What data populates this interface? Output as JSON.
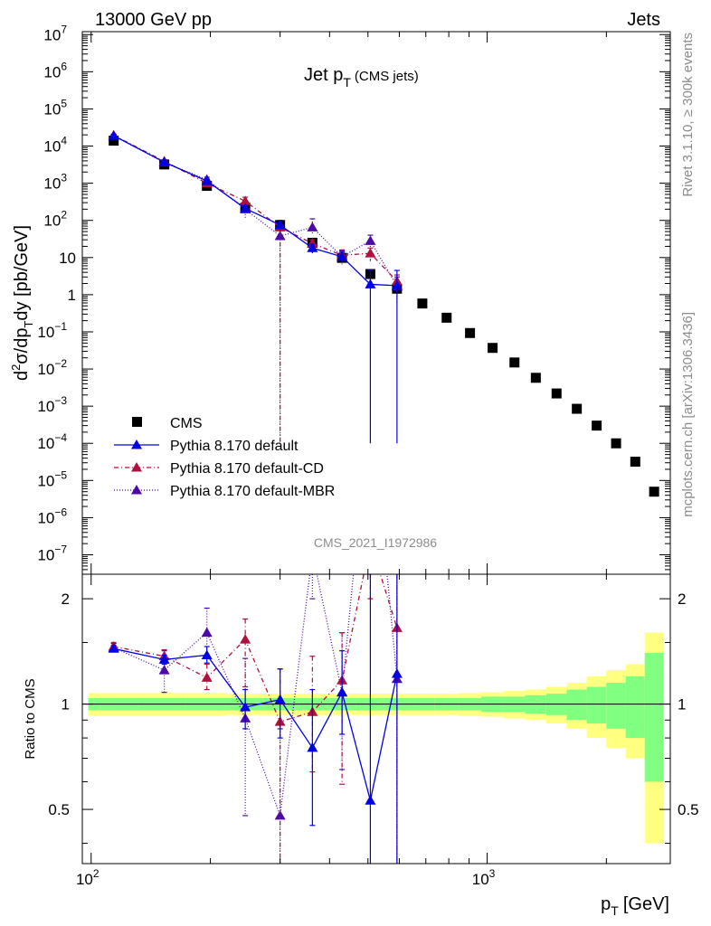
{
  "header": {
    "left": "13000 GeV pp",
    "right": "Jets"
  },
  "side": {
    "top": "Rivet 3.1.10, ≥ 300k events",
    "bottom": "mcplots.cern.ch [arXiv:1306.3436]"
  },
  "chart_data": {
    "type": "scatter",
    "title_main": "Jet p",
    "title_sub": "T",
    "title_paren": "(CMS jets)",
    "watermark": "CMS_2021_I1972986",
    "xlabel_main": "p",
    "xlabel_sub": "T",
    "xlabel_unit": "[GeV]",
    "ylabel": "d²σ/dp_T dy [pb/GeV]",
    "ratio_ylabel": "Ratio to CMS",
    "xlog": true,
    "ylog": true,
    "xlim": [
      95,
      2900
    ],
    "ylim": [
      3e-08,
      12000000.0
    ],
    "ratio_ylim": [
      0.35,
      2.35
    ],
    "x_ticks": [
      {
        "v": 100,
        "base": "10",
        "exp": "2"
      },
      {
        "v": 1000,
        "base": "10",
        "exp": "3"
      }
    ],
    "y_ticks": [
      {
        "v": 10000000.0,
        "base": "10",
        "exp": "7"
      },
      {
        "v": 1000000.0,
        "base": "10",
        "exp": "6"
      },
      {
        "v": 100000.0,
        "base": "10",
        "exp": "5"
      },
      {
        "v": 10000.0,
        "base": "10",
        "exp": "4"
      },
      {
        "v": 1000.0,
        "base": "10",
        "exp": "3"
      },
      {
        "v": 100.0,
        "base": "10",
        "exp": "2"
      },
      {
        "v": 10,
        "base": "10",
        "exp": ""
      },
      {
        "v": 1,
        "base": "1",
        "exp": ""
      },
      {
        "v": 0.1,
        "base": "10",
        "exp": "−1"
      },
      {
        "v": 0.01,
        "base": "10",
        "exp": "−2"
      },
      {
        "v": 0.001,
        "base": "10",
        "exp": "−3"
      },
      {
        "v": 0.0001,
        "base": "10",
        "exp": "−4"
      },
      {
        "v": 1e-05,
        "base": "10",
        "exp": "−5"
      },
      {
        "v": 1e-06,
        "base": "10",
        "exp": "−6"
      },
      {
        "v": 1e-07,
        "base": "10",
        "exp": "−7"
      }
    ],
    "ratio_ticks": [
      "0.5",
      "1",
      "2"
    ],
    "cms": {
      "name": "CMS",
      "color": "#000000",
      "x": [
        114,
        153,
        196,
        245,
        300,
        362,
        430,
        507,
        592,
        686,
        790,
        905,
        1032,
        1172,
        1327,
        1497,
        1684,
        1890,
        2116,
        2366,
        2640
      ],
      "y": [
        14000,
        3200,
        850,
        220,
        75,
        25,
        9.8,
        3.6,
        1.45,
        0.58,
        0.24,
        0.093,
        0.037,
        0.015,
        0.0058,
        0.0022,
        0.00085,
        0.0003,
        0.0001,
        3.2e-05,
        5e-06
      ],
      "band_rel_yellow": [
        0.075,
        0.075,
        0.075,
        0.07,
        0.07,
        0.07,
        0.07,
        0.07,
        0.07,
        0.07,
        0.07,
        0.075,
        0.08,
        0.09,
        0.1,
        0.12,
        0.15,
        0.2,
        0.25,
        0.3,
        0.6
      ],
      "band_rel_green": [
        0.04,
        0.04,
        0.04,
        0.04,
        0.04,
        0.04,
        0.04,
        0.04,
        0.04,
        0.04,
        0.04,
        0.04,
        0.05,
        0.05,
        0.06,
        0.07,
        0.1,
        0.12,
        0.15,
        0.2,
        0.4
      ]
    },
    "series": [
      {
        "name": "Pythia 8.170 default",
        "color": "#0000e6",
        "dash": "",
        "x": [
          114,
          153,
          196,
          245,
          300,
          362,
          430,
          507,
          592
        ],
        "y": [
          19000,
          3700,
          1150,
          210,
          75,
          18,
          10.5,
          1.9,
          1.75
        ],
        "ylo": [
          17500,
          3300,
          1000,
          170,
          50,
          13,
          8,
          0.0001,
          0.0001
        ],
        "yhi": [
          20500,
          4100,
          1300,
          250,
          100,
          23,
          14,
          4.5,
          4.5
        ],
        "ratio": [
          1.44,
          1.34,
          1.38,
          0.98,
          1.03,
          0.75,
          1.08,
          0.53,
          1.22
        ],
        "ratio_lo": [
          1.41,
          1.3,
          1.31,
          0.85,
          0.8,
          0.45,
          0.82,
          0.3,
          0.3
        ],
        "ratio_hi": [
          1.47,
          1.38,
          1.46,
          1.1,
          1.26,
          1.1,
          1.42,
          2.5,
          2.5
        ]
      },
      {
        "name": "Pythia 8.170 default-CD",
        "color": "#b0103c",
        "dash": "5,3,1,3",
        "x": [
          114,
          153,
          196,
          245,
          300,
          362,
          430,
          507,
          592
        ],
        "y": [
          19500,
          3900,
          1000,
          330,
          65,
          24,
          11.5,
          13,
          2.3
        ],
        "ylo": [
          18000,
          3500,
          850,
          240,
          0.0001,
          17,
          8,
          8,
          1.2
        ],
        "yhi": [
          21000,
          4300,
          1150,
          420,
          100,
          30,
          15,
          18,
          3.4
        ],
        "ratio": [
          1.46,
          1.37,
          1.19,
          1.53,
          0.89,
          0.95,
          1.17,
          2.9,
          1.65
        ],
        "ratio_lo": [
          1.42,
          1.32,
          1.1,
          1.12,
          0.3,
          0.64,
          0.59,
          2.0,
          0.3
        ],
        "ratio_hi": [
          1.5,
          1.43,
          1.3,
          1.75,
          1.26,
          1.37,
          1.6,
          3.5,
          2.5
        ]
      },
      {
        "name": "Pythia 8.170 default-MBR",
        "color": "#4c0aa8",
        "dash": "1,2",
        "x": [
          114,
          153,
          196,
          245,
          300,
          362,
          430,
          507,
          592
        ],
        "y": [
          19000,
          3600,
          1250,
          200,
          38,
          65,
          10.5,
          28,
          1.7
        ],
        "ylo": [
          17500,
          3200,
          1050,
          110,
          0.0001,
          40,
          6,
          17,
          0.6
        ],
        "yhi": [
          20500,
          4000,
          1450,
          290,
          60,
          110,
          16,
          40,
          3
        ],
        "ratio": [
          1.45,
          1.25,
          1.6,
          0.91,
          0.48,
          2.7,
          1.08,
          7.5,
          1.18
        ],
        "ratio_lo": [
          1.41,
          1.08,
          1.35,
          0.48,
          0.3,
          2.0,
          0.65,
          5,
          0.3
        ],
        "ratio_hi": [
          1.49,
          1.42,
          1.88,
          1.35,
          0.85,
          3.5,
          1.6,
          10,
          2.5
        ]
      }
    ],
    "legend_placement": "lower-left"
  }
}
